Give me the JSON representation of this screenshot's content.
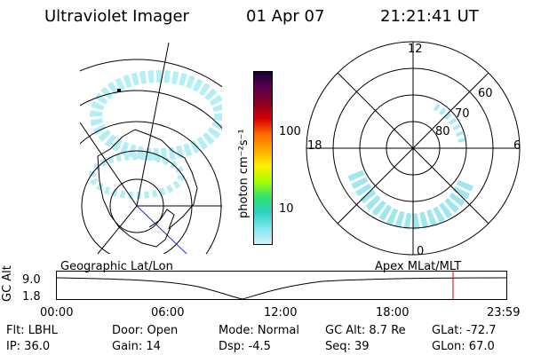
{
  "header": {
    "instrument": "Ultraviolet Imager",
    "date": "01 Apr 07",
    "time": "21:21:41 UT"
  },
  "left_panel": {
    "label": "Geographic Lat/Lon",
    "view": "Antarctica map projection with auroral oval"
  },
  "right_panel": {
    "label": "Apex MLat/MLT",
    "mlt_labels": {
      "top": "12",
      "left": "18",
      "right": "6",
      "bottom": "0"
    },
    "lat_labels": [
      "60",
      "70",
      "80"
    ]
  },
  "colorbar": {
    "unit_label": "photon cm⁻²s⁻¹",
    "ticks": [
      "100",
      "10"
    ],
    "colors": [
      "#1a0033",
      "#5a0050",
      "#8a0020",
      "#d40000",
      "#ff6a00",
      "#ffaa00",
      "#ffee00",
      "#a8ff00",
      "#30e070",
      "#30d0c0",
      "#80e8f0",
      "#d0f0f8"
    ]
  },
  "altitude_plot": {
    "ylabel": "GC Alt",
    "yticks": [
      "9.0",
      "1.8"
    ],
    "xticks": [
      "00:00",
      "06:00",
      "12:00",
      "18:00",
      "23:59"
    ],
    "current_time_marker_color": "#cc0000"
  },
  "status": {
    "flt": "Flt: LBHL",
    "ip": "IP: 36.0",
    "door": "Door: Open",
    "gain": "Gain: 14",
    "mode": "Mode: Normal",
    "dsp": "Dsp:   -4.5",
    "gc_alt": "GC Alt: 8.7 Re",
    "seq": "Seq: 39",
    "glat": "GLat: -72.7",
    "glon": "GLon:  67.0"
  }
}
